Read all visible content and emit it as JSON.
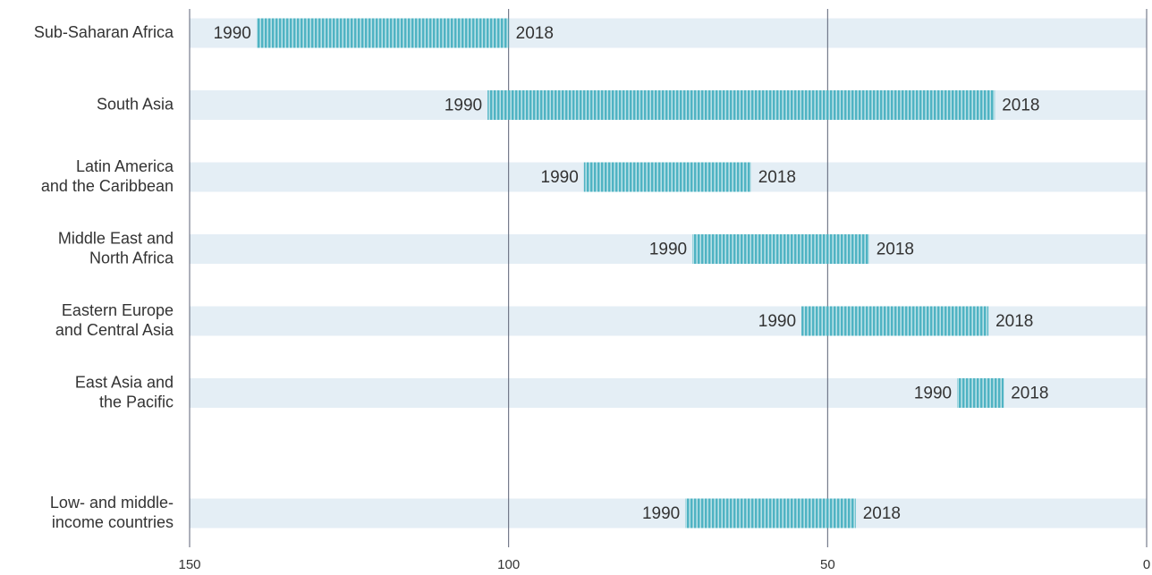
{
  "chart_data": {
    "type": "range-bar",
    "categories": [
      "Sub-Saharan Africa",
      "South Asia",
      "Latin America\nand the Caribbean",
      "Middle East and\nNorth Africa",
      "Eastern Europe\nand Central Asia",
      "East Asia and\nthe Pacific",
      "Low- and middle-\nincome countries"
    ],
    "series": [
      {
        "name": "1990",
        "color": "#4fb3c3",
        "values": [
          139.5,
          103.3,
          88.2,
          71.2,
          54.1,
          29.7,
          72.3
        ]
      },
      {
        "name": "2018",
        "color": "#4fb3c3",
        "values": [
          100,
          23.8,
          62,
          43.5,
          24.8,
          22.4,
          45.6
        ]
      }
    ],
    "xlim": [
      150,
      0
    ],
    "xticks": [
      150,
      100,
      50,
      0
    ],
    "grid": true
  }
}
